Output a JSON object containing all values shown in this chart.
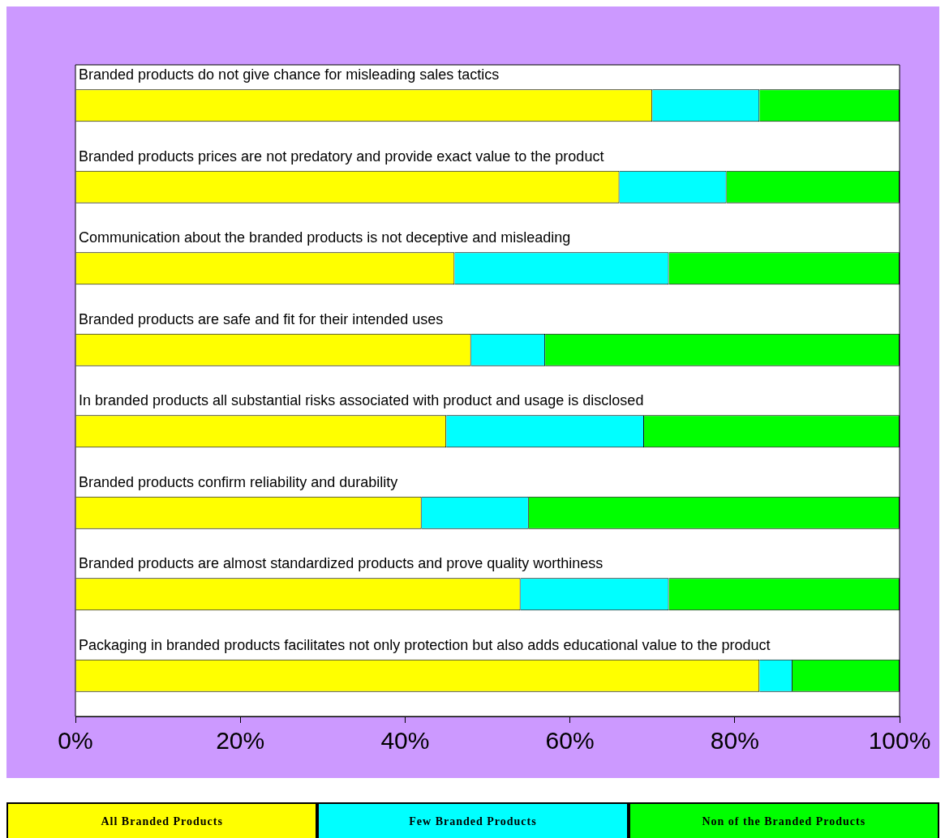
{
  "chart_data": {
    "type": "bar",
    "orientation": "horizontal",
    "stacked": true,
    "categories": [
      "Branded products do not give chance for misleading sales tactics",
      "Branded products prices are not predatory and provide exact value to the product",
      "Communication about the branded products is not deceptive and misleading",
      "Branded products are safe and fit for their intended uses",
      "In branded products all substantial risks associated with product and usage is disclosed",
      "Branded products confirm reliability and durability",
      "Branded products are almost standardized products and prove quality worthiness",
      "Packaging in branded products facilitates not only protection but also adds educational value to the product"
    ],
    "series": [
      {
        "name": "All Branded Products",
        "color": "#ffff00",
        "values": [
          70,
          66,
          46,
          48,
          45,
          42,
          54,
          83
        ]
      },
      {
        "name": "Few Branded Products",
        "color": "#00ffff",
        "values": [
          13,
          13,
          26,
          9,
          24,
          13,
          18,
          4
        ]
      },
      {
        "name": "Non of the Branded Products",
        "color": "#00ff00",
        "values": [
          17,
          21,
          28,
          43,
          31,
          45,
          28,
          13
        ]
      }
    ],
    "xlim": [
      0,
      100
    ],
    "xticks": [
      {
        "value": 0,
        "label": "0%"
      },
      {
        "value": 20,
        "label": "20%"
      },
      {
        "value": 40,
        "label": "40%"
      },
      {
        "value": 60,
        "label": "60%"
      },
      {
        "value": 80,
        "label": "80%"
      },
      {
        "value": 100,
        "label": "100%"
      }
    ],
    "grid": false,
    "legend": "bottom"
  }
}
